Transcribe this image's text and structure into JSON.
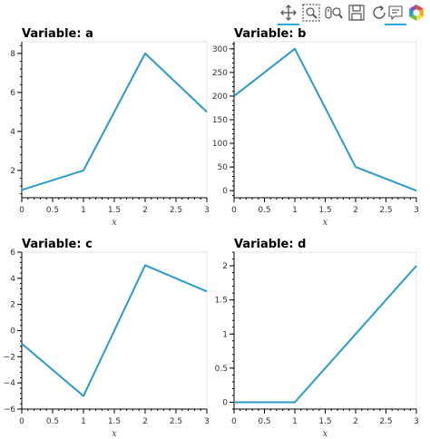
{
  "toolbar": {
    "tools": [
      {
        "name": "pan-tool-icon",
        "active": true
      },
      {
        "name": "box-zoom-tool-icon",
        "active": false
      },
      {
        "name": "wheel-zoom-tool-icon",
        "active": false
      },
      {
        "name": "save-tool-icon",
        "active": false
      },
      {
        "name": "reset-tool-icon",
        "active": false
      },
      {
        "name": "hover-tool-icon",
        "active": true
      },
      {
        "name": "bokeh-logo-icon",
        "active": false
      }
    ]
  },
  "line_color": "#2b9ac8",
  "chart_data": [
    {
      "type": "line",
      "title": "Variable: a",
      "xlabel": "x",
      "x": [
        0,
        1,
        2,
        3
      ],
      "y": [
        1,
        2,
        8,
        5
      ],
      "xlim": [
        0,
        3
      ],
      "ylim": [
        0.6,
        8.6
      ],
      "xticks": [
        0,
        0.5,
        1,
        1.5,
        2,
        2.5,
        3
      ],
      "yticks": [
        2,
        4,
        6,
        8
      ]
    },
    {
      "type": "line",
      "title": "Variable: b",
      "xlabel": "x",
      "x": [
        0,
        1,
        2,
        3
      ],
      "y": [
        200,
        300,
        50,
        0
      ],
      "xlim": [
        0,
        3
      ],
      "ylim": [
        -15,
        315
      ],
      "xticks": [
        0,
        0.5,
        1,
        1.5,
        2,
        2.5,
        3
      ],
      "yticks": [
        0,
        50,
        100,
        150,
        200,
        250,
        300
      ]
    },
    {
      "type": "line",
      "title": "Variable: c",
      "xlabel": "x",
      "x": [
        0,
        1,
        2,
        3
      ],
      "y": [
        -1,
        -5,
        5,
        3
      ],
      "xlim": [
        0,
        3
      ],
      "ylim": [
        -6,
        6
      ],
      "xticks": [
        0,
        0.5,
        1,
        1.5,
        2,
        2.5,
        3
      ],
      "yticks": [
        -6,
        -4,
        -2,
        0,
        2,
        4,
        6
      ]
    },
    {
      "type": "line",
      "title": "Variable: d",
      "xlabel": "x",
      "x": [
        0,
        1,
        2,
        3
      ],
      "y": [
        0,
        0,
        1,
        2
      ],
      "xlim": [
        0,
        3
      ],
      "ylim": [
        -0.1,
        2.2
      ],
      "xticks": [
        0,
        0.5,
        1,
        1.5,
        2,
        2.5,
        3
      ],
      "yticks": [
        0,
        0.5,
        1,
        1.5,
        2
      ]
    }
  ]
}
